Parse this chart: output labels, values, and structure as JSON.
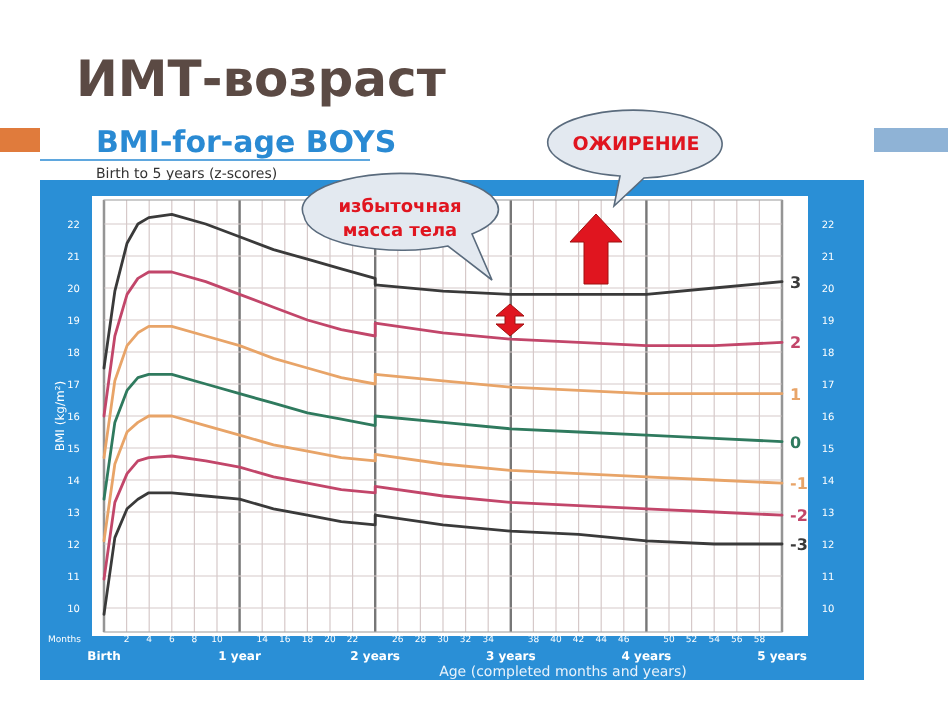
{
  "chart_data": {
    "type": "line",
    "title": "ИМТ-возраст",
    "subtitle": "BMI-for-age BOYS",
    "xlabel": "Age (completed months and years)",
    "ylabel": "BMI (kg/m²)",
    "annotations": [
      "Birth to 5 years (z-scores)",
      "Months",
      "избыточная масса тела",
      "ОЖИРЕНИЕ"
    ],
    "x": [
      0,
      0.08,
      0.17,
      0.25,
      0.33,
      0.5,
      0.75,
      1,
      1.25,
      1.5,
      1.75,
      2,
      2,
      2.5,
      3,
      3.5,
      4,
      4.5,
      5
    ],
    "xlim": [
      0,
      5
    ],
    "xticks": [
      {
        "value": 0,
        "label": "Birth"
      },
      {
        "value": 1,
        "label": "1 year"
      },
      {
        "value": 2,
        "label": "2 years"
      },
      {
        "value": 3,
        "label": "3 years"
      },
      {
        "value": 4,
        "label": "4 years"
      },
      {
        "value": 5,
        "label": "5 years"
      }
    ],
    "x2lim": [
      0,
      60
    ],
    "x2ticks": [
      2,
      4,
      6,
      8,
      10,
      14,
      16,
      18,
      20,
      22,
      26,
      28,
      30,
      32,
      34,
      38,
      40,
      42,
      44,
      46,
      50,
      52,
      54,
      56,
      58
    ],
    "ylim": [
      9.25,
      22.75
    ],
    "yticks": [
      10,
      11,
      12,
      13,
      14,
      15,
      16,
      17,
      18,
      19,
      20,
      21,
      22
    ],
    "y2lim": [
      9.25,
      22.75
    ],
    "y2ticks": [
      10,
      11,
      12,
      13,
      14,
      15,
      16,
      17,
      18,
      19,
      20,
      21,
      22
    ],
    "grid": true,
    "marker": "none",
    "line_style": "solid",
    "series": [
      {
        "name": "3",
        "color": "#3a3a3a",
        "values": [
          17.5,
          19.9,
          21.4,
          22.0,
          22.2,
          22.3,
          22.0,
          21.6,
          21.2,
          20.9,
          20.6,
          20.3,
          20.1,
          19.9,
          19.8,
          19.8,
          19.8,
          20.0,
          20.2
        ]
      },
      {
        "name": "2",
        "color": "#c2466a",
        "values": [
          16.0,
          18.5,
          19.8,
          20.3,
          20.5,
          20.5,
          20.2,
          19.8,
          19.4,
          19.0,
          18.7,
          18.5,
          18.9,
          18.6,
          18.4,
          18.3,
          18.2,
          18.2,
          18.3
        ]
      },
      {
        "name": "1",
        "color": "#e8a468",
        "values": [
          14.7,
          17.1,
          18.2,
          18.6,
          18.8,
          18.8,
          18.5,
          18.2,
          17.8,
          17.5,
          17.2,
          17.0,
          17.3,
          17.1,
          16.9,
          16.8,
          16.7,
          16.7,
          16.7
        ]
      },
      {
        "name": "0",
        "color": "#2f7a5e",
        "values": [
          13.4,
          15.8,
          16.8,
          17.2,
          17.3,
          17.3,
          17.0,
          16.7,
          16.4,
          16.1,
          15.9,
          15.7,
          16.0,
          15.8,
          15.6,
          15.5,
          15.4,
          15.3,
          15.2
        ]
      },
      {
        "name": "-1",
        "color": "#e8a468",
        "values": [
          12.1,
          14.5,
          15.5,
          15.8,
          16.0,
          16.0,
          15.7,
          15.4,
          15.1,
          14.9,
          14.7,
          14.6,
          14.8,
          14.5,
          14.3,
          14.2,
          14.1,
          14.0,
          13.9
        ]
      },
      {
        "name": "-2",
        "color": "#c2466a",
        "values": [
          10.9,
          13.3,
          14.2,
          14.6,
          14.7,
          14.75,
          14.6,
          14.4,
          14.1,
          13.9,
          13.7,
          13.6,
          13.8,
          13.5,
          13.3,
          13.2,
          13.1,
          13.0,
          12.9
        ]
      },
      {
        "name": "-3",
        "color": "#3a3a3a",
        "values": [
          9.8,
          12.2,
          13.1,
          13.4,
          13.6,
          13.6,
          13.5,
          13.4,
          13.1,
          12.9,
          12.7,
          12.6,
          12.9,
          12.6,
          12.4,
          12.3,
          12.1,
          12.0,
          12.0
        ]
      }
    ]
  }
}
